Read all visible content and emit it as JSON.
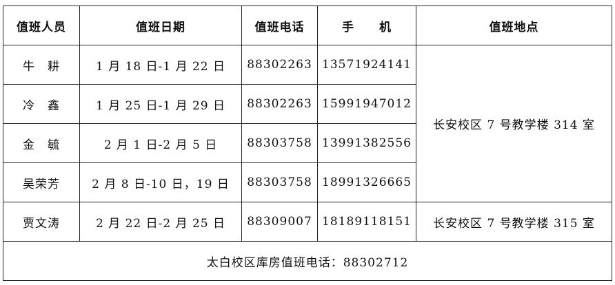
{
  "headers": [
    "值班人员",
    "值班日期",
    "值班电话",
    "手　　机",
    "值班地点"
  ],
  "rows": [
    {
      "name": "牛　耕",
      "date": "1 月 18 日-1 月 22 日",
      "phone": "88302263",
      "mobile": "13571924141"
    },
    {
      "name": "冷　鑫",
      "date": "1 月 25 日-1 月 29 日",
      "phone": "88302263",
      "mobile": "15991947012"
    },
    {
      "name": "金　毓",
      "date": "2 月 1 日-2 月 5 日",
      "phone": "88303758",
      "mobile": "13991382556"
    },
    {
      "name": "吴荣芳",
      "date": "2 月 8 日-10 日，19 日",
      "phone": "88303758",
      "mobile": "18991326665"
    },
    {
      "name": "贾文涛",
      "date": "2 月 22 日-2 月 25 日",
      "phone": "88309007",
      "mobile": "18189118151"
    }
  ],
  "locations": [
    "长安校区 7 号教学楼 314 室",
    "长安校区 7 号教学楼 315 室"
  ],
  "footer": "太白校区库房值班电话：88302712"
}
